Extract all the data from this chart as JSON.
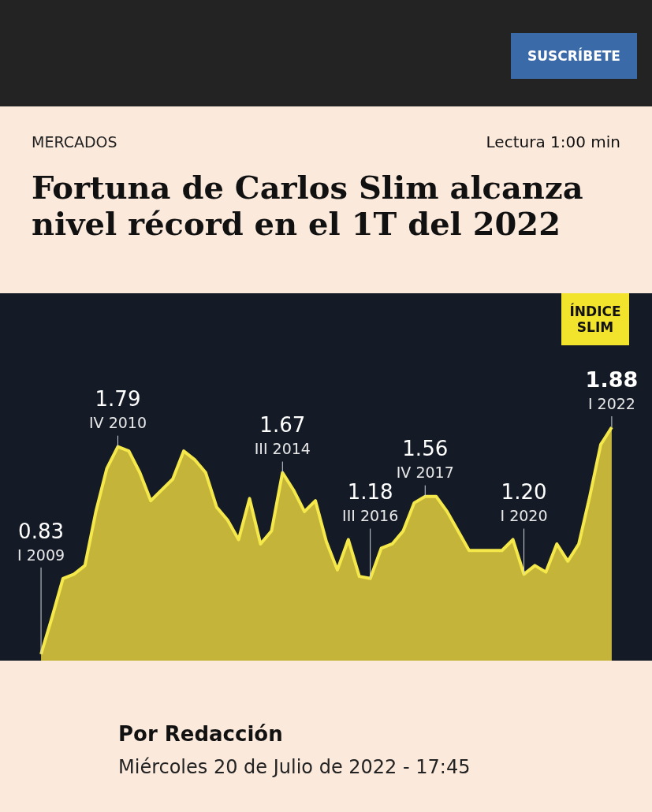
{
  "chart_data": {
    "type": "area",
    "title": "Fortuna de Carlos Slim alcanza nivel récord en el 1T del 2022",
    "subtitle": "MERCADOS",
    "categories": [
      "I 2009",
      null,
      null,
      null,
      null,
      null,
      null,
      "IV 2010",
      null,
      null,
      null,
      null,
      null,
      null,
      null,
      null,
      null,
      null,
      null,
      null,
      null,
      null,
      "III 2014",
      null,
      null,
      null,
      null,
      null,
      null,
      null,
      "III 2016",
      null,
      null,
      null,
      null,
      "IV 2017",
      null,
      null,
      null,
      null,
      null,
      null,
      null,
      null,
      "I 2020",
      null,
      null,
      null,
      null,
      null,
      null,
      null,
      "I 2022"
    ],
    "values": [
      0.83,
      1.0,
      1.18,
      1.2,
      1.24,
      1.49,
      1.69,
      1.79,
      1.77,
      1.67,
      1.54,
      1.59,
      1.64,
      1.77,
      1.73,
      1.67,
      1.51,
      1.45,
      1.36,
      1.55,
      1.34,
      1.4,
      1.67,
      1.59,
      1.49,
      1.54,
      1.35,
      1.22,
      1.36,
      1.19,
      1.18,
      1.32,
      1.34,
      1.4,
      1.53,
      1.56,
      1.56,
      1.49,
      1.4,
      1.31,
      1.31,
      1.31,
      1.31,
      1.36,
      1.2,
      1.24,
      1.21,
      1.34,
      1.26,
      1.34,
      1.56,
      1.8,
      1.88
    ],
    "value_labels": [
      "0.83",
      null,
      null,
      null,
      null,
      null,
      null,
      "1.79",
      null,
      null,
      null,
      null,
      null,
      null,
      null,
      null,
      null,
      null,
      null,
      null,
      null,
      null,
      "1.67",
      null,
      null,
      null,
      null,
      null,
      null,
      null,
      "1.18",
      null,
      null,
      null,
      null,
      "1.56",
      null,
      null,
      null,
      null,
      null,
      null,
      null,
      null,
      "1.20",
      null,
      null,
      null,
      null,
      null,
      null,
      null,
      "1.88"
    ],
    "color": "#c4b43a",
    "ylim": [
      0.8,
      2.5
    ],
    "tick_labels": false,
    "annotations": [
      "Lectura 1:00 min",
      "SUSCRÍBETE",
      "ÍNDICE SLIM",
      "Por Redacción",
      "Miércoles 20 de Julio de 2022 - 17:45"
    ]
  }
}
